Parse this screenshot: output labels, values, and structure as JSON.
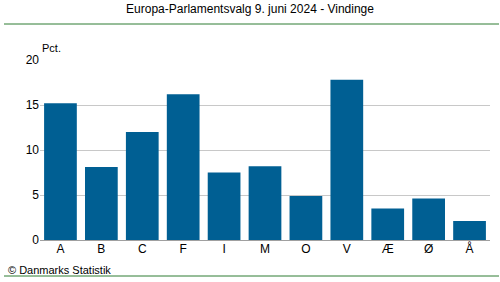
{
  "chart_data": {
    "type": "bar",
    "title": "Europa-Parlamentsvalg 9. juni 2024 - Vindinge",
    "y_label": "Pct.",
    "source": "© Danmarks Statistik",
    "categories": [
      "A",
      "B",
      "C",
      "F",
      "I",
      "M",
      "O",
      "V",
      "Æ",
      "Ø",
      "Å"
    ],
    "values": [
      15.2,
      8.1,
      12.0,
      16.2,
      7.5,
      8.2,
      4.9,
      17.8,
      3.5,
      4.6,
      2.1
    ],
    "color": "#005f93",
    "ylim": [
      0,
      20
    ],
    "yticks": [
      0,
      5,
      10,
      15,
      20
    ],
    "grid": true
  }
}
